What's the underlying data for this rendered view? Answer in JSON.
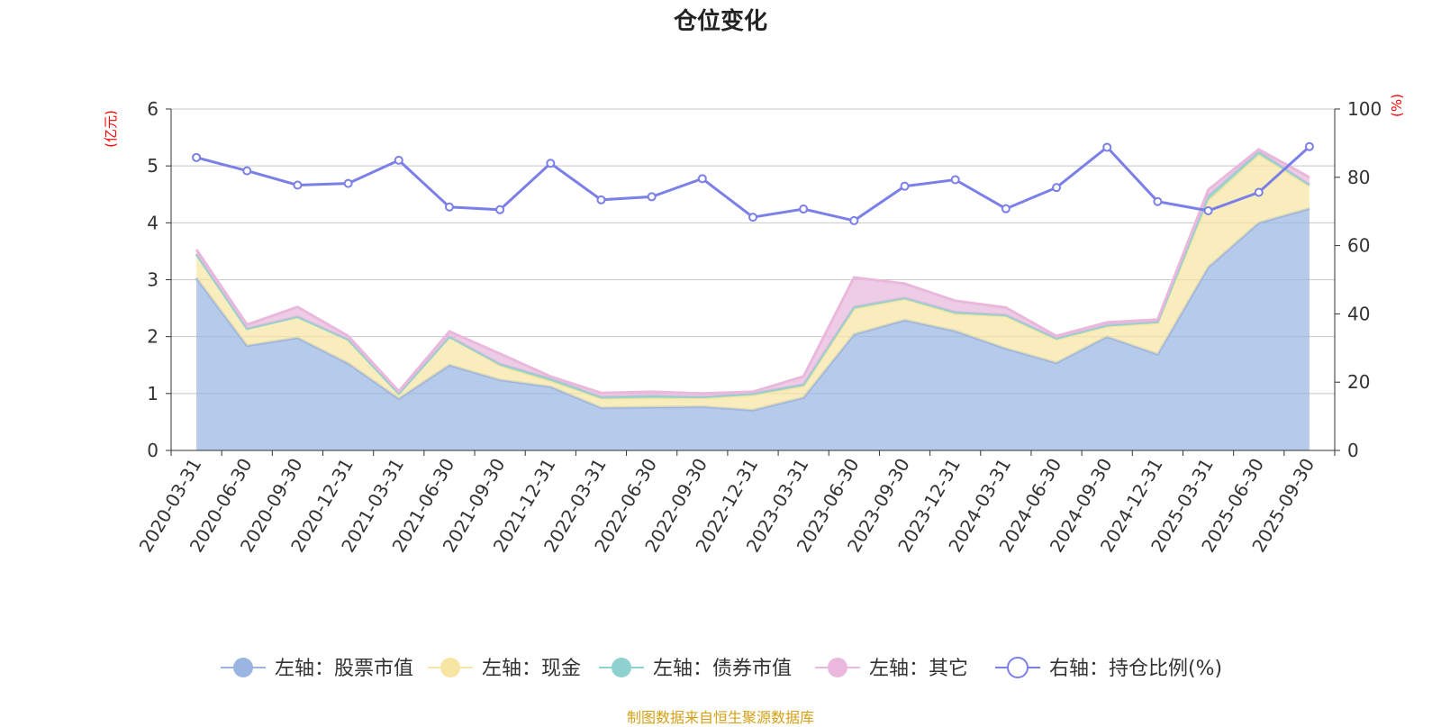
{
  "chart_data": {
    "type": "area",
    "title": "仓位变化",
    "source": "制图数据来自恒生聚源数据库",
    "y_left_label": "(亿元)",
    "y_right_label": "(%)",
    "y_left_range": [
      0,
      6
    ],
    "y_left_ticks": [
      "0",
      "1",
      "2",
      "3",
      "4",
      "5",
      "6"
    ],
    "y_right_range": [
      0,
      100
    ],
    "y_right_ticks": [
      "0",
      "20",
      "40",
      "60",
      "80",
      "100"
    ],
    "grid": true,
    "legend_position": "bottom",
    "categories": [
      "2020-03-31",
      "2020-06-30",
      "2020-09-30",
      "2020-12-31",
      "2021-03-31",
      "2021-06-30",
      "2021-09-30",
      "2021-12-31",
      "2022-03-31",
      "2022-06-30",
      "2022-09-30",
      "2022-12-31",
      "2023-03-31",
      "2023-06-30",
      "2023-09-30",
      "2023-12-31",
      "2024-03-31",
      "2024-06-30",
      "2024-09-30",
      "2024-12-31",
      "2025-03-31",
      "2025-06-30",
      "2025-09-30"
    ],
    "series": [
      {
        "name": "左轴：股票市值",
        "axis": "left",
        "kind": "stack",
        "color": "#9ab5e1",
        "values": [
          3.03,
          1.84,
          1.98,
          1.53,
          0.91,
          1.5,
          1.24,
          1.12,
          0.75,
          0.76,
          0.77,
          0.71,
          0.93,
          2.04,
          2.29,
          2.1,
          1.79,
          1.54,
          2.0,
          1.69,
          3.22,
          4.0,
          4.25
        ]
      },
      {
        "name": "左轴：现金",
        "axis": "left",
        "kind": "stack",
        "color": "#f7e5a3",
        "values": [
          0.42,
          0.3,
          0.37,
          0.42,
          0.09,
          0.5,
          0.25,
          0.1,
          0.16,
          0.16,
          0.15,
          0.26,
          0.2,
          0.45,
          0.37,
          0.3,
          0.57,
          0.41,
          0.18,
          0.55,
          1.18,
          1.2,
          0.4
        ]
      },
      {
        "name": "左轴：债券市值",
        "axis": "left",
        "kind": "stack",
        "color": "#8fd1cf",
        "values": [
          0,
          0,
          0,
          0,
          0,
          0,
          0.03,
          0.04,
          0.03,
          0.04,
          0.02,
          0.03,
          0.03,
          0.03,
          0.02,
          0.03,
          0.02,
          0.02,
          0.02,
          0.02,
          0.07,
          0.05,
          0.02
        ]
      },
      {
        "name": "左轴：其它",
        "axis": "left",
        "kind": "stack",
        "color": "#e9b8dc",
        "values": [
          0.08,
          0.07,
          0.17,
          0.06,
          0.04,
          0.09,
          0.18,
          0.04,
          0.07,
          0.07,
          0.06,
          0.03,
          0.14,
          0.52,
          0.25,
          0.2,
          0.13,
          0.04,
          0.05,
          0.04,
          0.11,
          0.04,
          0.13
        ]
      },
      {
        "name": "右轴：持仓比例(%)",
        "axis": "right",
        "kind": "line",
        "color": "#7b7fe8",
        "values": [
          85.8,
          81.9,
          77.7,
          78.2,
          85.0,
          71.3,
          70.5,
          84.1,
          73.4,
          74.3,
          79.6,
          68.3,
          70.7,
          67.3,
          77.4,
          79.3,
          70.8,
          77.0,
          88.8,
          72.9,
          70.2,
          75.6,
          89.0
        ]
      }
    ]
  }
}
